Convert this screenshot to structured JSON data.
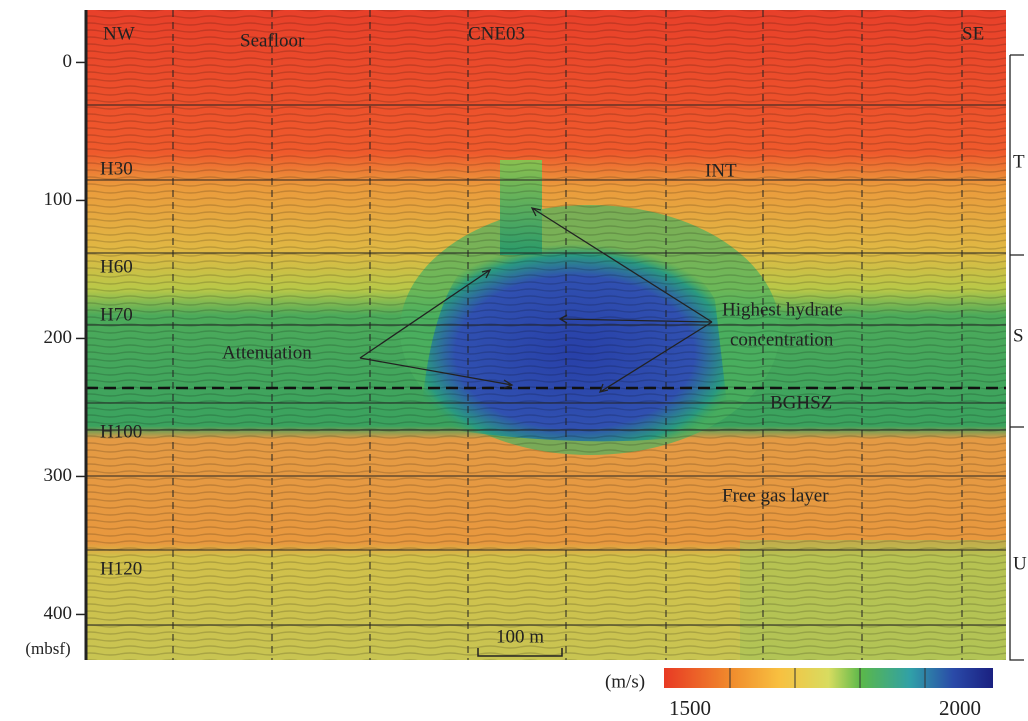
{
  "figure": {
    "depth_axis": {
      "label": "(mbsf)",
      "ylim": [
        -38,
        433
      ],
      "yticks": [
        0,
        100,
        200,
        300,
        400
      ]
    },
    "top_labels": {
      "left": "NW",
      "seafloor": "Seafloor",
      "site": "CNE03",
      "right": "SE"
    },
    "horizons": [
      "H30",
      "H60",
      "H70",
      "H100",
      "H120"
    ],
    "annotations": {
      "int": "INT",
      "attenuation": "Attenuation",
      "hydrate": [
        "Highest hydrate",
        "concentration"
      ],
      "bghsz": "BGHSZ",
      "free_gas": "Free gas layer"
    },
    "units": [
      "T",
      "S",
      "U"
    ],
    "scale_bar": "100 m",
    "colorbar": {
      "unit": "(m/s)",
      "ticks": [
        1500,
        2000
      ]
    }
  }
}
